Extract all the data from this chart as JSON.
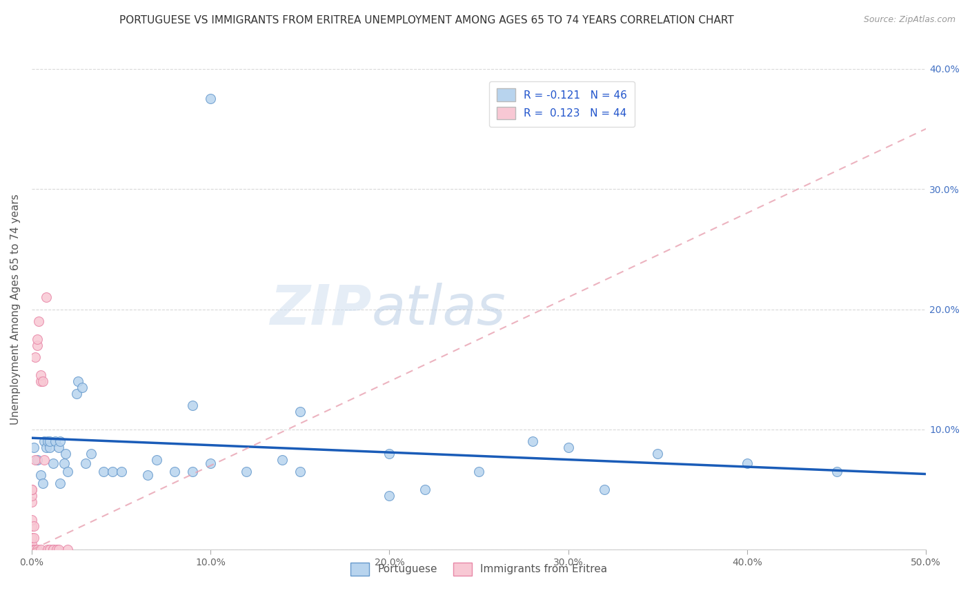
{
  "title": "PORTUGUESE VS IMMIGRANTS FROM ERITREA UNEMPLOYMENT AMONG AGES 65 TO 74 YEARS CORRELATION CHART",
  "source": "Source: ZipAtlas.com",
  "ylabel": "Unemployment Among Ages 65 to 74 years",
  "xlabel": "",
  "xlim": [
    0,
    0.5
  ],
  "ylim": [
    0,
    0.4
  ],
  "xticks": [
    0.0,
    0.1,
    0.2,
    0.3,
    0.4,
    0.5
  ],
  "yticks": [
    0.0,
    0.1,
    0.2,
    0.3,
    0.4
  ],
  "xtick_labels": [
    "0.0%",
    "10.0%",
    "20.0%",
    "30.0%",
    "40.0%",
    "50.0%"
  ],
  "left_ytick_labels": [
    "",
    "",
    "",
    "",
    ""
  ],
  "right_ytick_labels": [
    "",
    "10.0%",
    "20.0%",
    "30.0%",
    "40.0%"
  ],
  "watermark_zip": "ZIP",
  "watermark_atlas": "atlas",
  "legend_entries": [
    {
      "label": "R = -0.121   N = 46",
      "color": "#b8d4ee"
    },
    {
      "label": "R =  0.123   N = 44",
      "color": "#f8c8d4"
    }
  ],
  "blue_scatter": [
    [
      0.001,
      0.085
    ],
    [
      0.003,
      0.075
    ],
    [
      0.005,
      0.062
    ],
    [
      0.006,
      0.055
    ],
    [
      0.007,
      0.09
    ],
    [
      0.008,
      0.085
    ],
    [
      0.009,
      0.09
    ],
    [
      0.01,
      0.085
    ],
    [
      0.01,
      0.09
    ],
    [
      0.012,
      0.072
    ],
    [
      0.013,
      0.09
    ],
    [
      0.015,
      0.085
    ],
    [
      0.016,
      0.09
    ],
    [
      0.016,
      0.055
    ],
    [
      0.018,
      0.072
    ],
    [
      0.019,
      0.08
    ],
    [
      0.02,
      0.065
    ],
    [
      0.025,
      0.13
    ],
    [
      0.026,
      0.14
    ],
    [
      0.028,
      0.135
    ],
    [
      0.03,
      0.072
    ],
    [
      0.033,
      0.08
    ],
    [
      0.04,
      0.065
    ],
    [
      0.045,
      0.065
    ],
    [
      0.05,
      0.065
    ],
    [
      0.065,
      0.062
    ],
    [
      0.07,
      0.075
    ],
    [
      0.08,
      0.065
    ],
    [
      0.09,
      0.065
    ],
    [
      0.09,
      0.12
    ],
    [
      0.1,
      0.072
    ],
    [
      0.1,
      0.375
    ],
    [
      0.12,
      0.065
    ],
    [
      0.14,
      0.075
    ],
    [
      0.15,
      0.115
    ],
    [
      0.15,
      0.065
    ],
    [
      0.2,
      0.08
    ],
    [
      0.2,
      0.045
    ],
    [
      0.22,
      0.05
    ],
    [
      0.25,
      0.065
    ],
    [
      0.28,
      0.09
    ],
    [
      0.3,
      0.085
    ],
    [
      0.32,
      0.05
    ],
    [
      0.35,
      0.08
    ],
    [
      0.4,
      0.072
    ],
    [
      0.45,
      0.065
    ]
  ],
  "pink_scatter": [
    [
      0.0,
      0.0
    ],
    [
      0.0,
      0.0
    ],
    [
      0.0,
      0.0
    ],
    [
      0.0,
      0.0
    ],
    [
      0.0,
      0.0
    ],
    [
      0.0,
      0.0
    ],
    [
      0.0,
      0.0
    ],
    [
      0.0,
      0.0
    ],
    [
      0.0,
      0.0
    ],
    [
      0.0,
      0.0
    ],
    [
      0.0,
      0.0
    ],
    [
      0.0,
      0.0
    ],
    [
      0.0,
      0.005
    ],
    [
      0.0,
      0.01
    ],
    [
      0.0,
      0.02
    ],
    [
      0.0,
      0.025
    ],
    [
      0.0,
      0.04
    ],
    [
      0.0,
      0.045
    ],
    [
      0.0,
      0.05
    ],
    [
      0.0,
      0.05
    ],
    [
      0.001,
      0.0
    ],
    [
      0.001,
      0.0
    ],
    [
      0.001,
      0.01
    ],
    [
      0.001,
      0.02
    ],
    [
      0.002,
      0.0
    ],
    [
      0.002,
      0.075
    ],
    [
      0.002,
      0.16
    ],
    [
      0.003,
      0.0
    ],
    [
      0.003,
      0.17
    ],
    [
      0.003,
      0.175
    ],
    [
      0.004,
      0.19
    ],
    [
      0.005,
      0.0
    ],
    [
      0.005,
      0.14
    ],
    [
      0.005,
      0.145
    ],
    [
      0.006,
      0.14
    ],
    [
      0.007,
      0.075
    ],
    [
      0.008,
      0.21
    ],
    [
      0.009,
      0.0
    ],
    [
      0.01,
      0.0
    ],
    [
      0.012,
      0.0
    ],
    [
      0.012,
      0.0
    ],
    [
      0.014,
      0.0
    ],
    [
      0.015,
      0.0
    ],
    [
      0.02,
      0.0
    ]
  ],
  "blue_line_x": [
    0.0,
    0.5
  ],
  "blue_line_y": [
    0.093,
    0.063
  ],
  "pink_line_x": [
    0.0,
    0.5
  ],
  "pink_line_y": [
    0.0,
    0.35
  ],
  "blue_scatter_color": "#b8d4ee",
  "blue_scatter_edge": "#6699cc",
  "pink_scatter_color": "#f8c8d4",
  "pink_scatter_edge": "#e888a8",
  "blue_line_color": "#1a5cb8",
  "pink_line_color": "#e8a0b0",
  "grid_color": "#d8d8d8",
  "background_color": "#ffffff",
  "title_fontsize": 11,
  "axis_label_fontsize": 11,
  "tick_fontsize": 10,
  "legend_fontsize": 11,
  "legend_label_color": "#2255cc",
  "right_tick_color": "#4472c4",
  "bottom_legend_labels": [
    "Portuguese",
    "Immigrants from Eritrea"
  ],
  "bottom_legend_colors": [
    "#b8d4ee",
    "#f8c8d4"
  ],
  "bottom_legend_edge_colors": [
    "#6699cc",
    "#e888a8"
  ]
}
